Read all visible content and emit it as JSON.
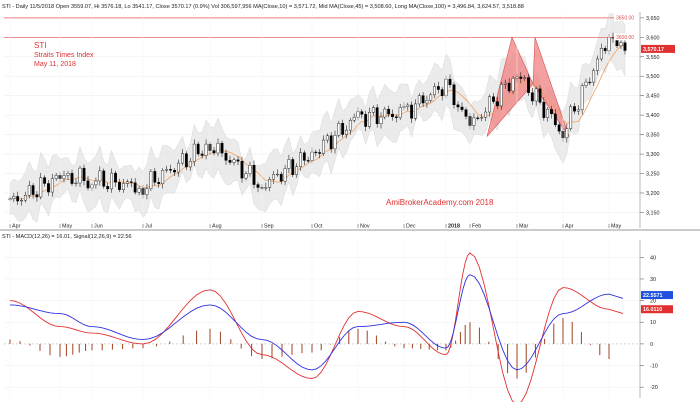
{
  "header": {
    "text": "STI - Daily 11/5/2018 Open 3559.07, Hi 3576.18, Lo 3541.17, Close 3570.17 (0.9%) Vol 306,597,956 MA(Close,10) = 3,571.72, Mid MA(Close,45) = 3,508.60, Long MA(Close,100) = 3,496.84, 3,624.57, 3,518.88"
  },
  "overlay": {
    "ticker": "STI",
    "name": "Straits Times Index",
    "date": "May 11, 2018",
    "watermark": "AmiBrokerAcademy.com  2018"
  },
  "macd_header": {
    "text": "STI - MACD(12,26) = 16.01, Signal(12,26,9) = 22.56"
  },
  "colors": {
    "price_bg_band": "#e6e6e6",
    "candle": "#000000",
    "ma_mid": "#f0a060",
    "level_line": "#e05050",
    "harmonic_fill": "#f08080",
    "macd_line": "#e03030",
    "signal_line": "#3030e0",
    "histogram": "#a04020",
    "tag_red": "#e03030",
    "tag_blue": "#2050e0"
  },
  "chart_data": [
    {
      "type": "line",
      "title": "STI - Daily",
      "y_ticks": [
        3150,
        3200,
        3250,
        3300,
        3350,
        3400,
        3450,
        3500,
        3550,
        3600,
        3650
      ],
      "ylim": [
        3110,
        3665
      ],
      "x_ticks": [
        "Apr",
        "May",
        "Jun",
        "Jul",
        "Aug",
        "Sep",
        "Oct",
        "Nov",
        "Dec",
        "2018",
        "Feb",
        "Mar",
        "Apr",
        "May"
      ],
      "level_lines": [
        {
          "value": 3650,
          "label": "3650.00"
        },
        {
          "value": 3600,
          "label": "3600.00"
        }
      ],
      "last_close": 3570.17,
      "last_close_label": "3,570.17",
      "series": [
        {
          "x": [
            "Apr",
            "May",
            "Jun",
            "Jul",
            "Aug",
            "Sep",
            "Oct",
            "Nov",
            "Dec",
            "2018",
            "Feb",
            "Mar",
            "Apr",
            "May"
          ],
          "values": [
            3175,
            3240,
            3235,
            3215,
            3325,
            3220,
            3300,
            3395,
            3405,
            3480,
            3370,
            3505,
            3355,
            3600
          ]
        }
      ]
    },
    {
      "type": "line",
      "title": "STI - MACD(12,26)",
      "y_ticks": [
        -20,
        -10,
        0,
        10,
        20,
        30,
        40
      ],
      "ylim": [
        -25,
        48
      ],
      "x_ticks": [
        "Apr",
        "May",
        "Jun",
        "Jul",
        "Aug",
        "Sep",
        "Oct",
        "Nov",
        "Dec",
        "2018",
        "Feb",
        "Mar",
        "Apr",
        "May"
      ],
      "tags": [
        {
          "value": 22.56,
          "label": "22.5571",
          "series": "Signal"
        },
        {
          "value": 16.01,
          "label": "16.0110",
          "series": "MACD"
        }
      ],
      "series": [
        {
          "name": "MACD(12,26)",
          "x": [
            "Apr",
            "May",
            "Jun",
            "Jul",
            "Aug",
            "Sep",
            "Oct",
            "Nov",
            "Dec",
            "2018",
            "Feb",
            "Mar",
            "Apr",
            "May"
          ],
          "values": [
            20,
            8,
            5,
            0,
            25,
            -5,
            -16,
            15,
            8,
            -5,
            42,
            -28,
            26,
            16
          ]
        },
        {
          "name": "Signal(12,26,9)",
          "x": [
            "Apr",
            "May",
            "Jun",
            "Jul",
            "Aug",
            "Sep",
            "Oct",
            "Nov",
            "Dec",
            "2018",
            "Feb",
            "Mar",
            "Apr",
            "May"
          ],
          "values": [
            18,
            14,
            8,
            2,
            18,
            2,
            -12,
            8,
            10,
            -2,
            32,
            -12,
            14,
            23
          ]
        }
      ]
    }
  ]
}
